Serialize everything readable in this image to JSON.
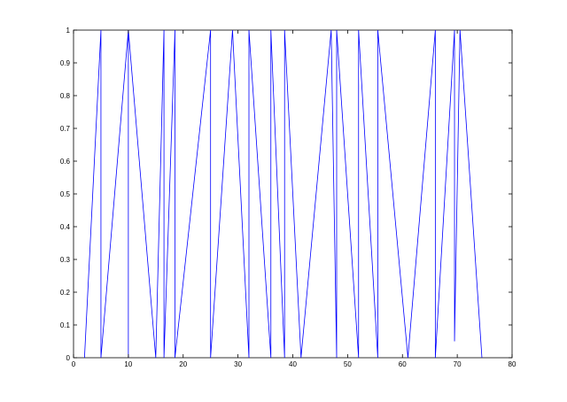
{
  "chart_data": {
    "type": "line",
    "title": "",
    "xlabel": "",
    "ylabel": "",
    "xlim": [
      0,
      80
    ],
    "ylim": [
      0,
      1
    ],
    "xticks": [
      0,
      10,
      20,
      30,
      40,
      50,
      60,
      70,
      80
    ],
    "yticks": [
      0,
      0.1,
      0.2,
      0.3,
      0.4,
      0.5,
      0.6,
      0.7,
      0.8,
      0.9,
      1
    ],
    "grid": false,
    "legend": "none",
    "series": [
      {
        "color": "#0000ff",
        "x": [
          2,
          5,
          5,
          10,
          10,
          10,
          10,
          10,
          15,
          16.5,
          16.5,
          18.5,
          18.5,
          25,
          25,
          29,
          32,
          32,
          36,
          36,
          38.5,
          38.5,
          41.5,
          47,
          48,
          48,
          52,
          52,
          55.5,
          55.5,
          61,
          66,
          66,
          69.5,
          69.5,
          70.5,
          74.5
        ],
        "y": [
          0,
          1,
          0,
          1,
          0.5,
          1,
          0,
          1,
          0,
          1,
          0,
          1,
          0,
          1,
          0,
          1,
          0,
          1,
          0,
          1,
          0,
          1,
          0,
          1,
          0,
          1,
          0,
          1,
          0,
          1,
          0,
          1,
          0,
          1,
          0.05,
          1,
          0
        ]
      }
    ]
  }
}
